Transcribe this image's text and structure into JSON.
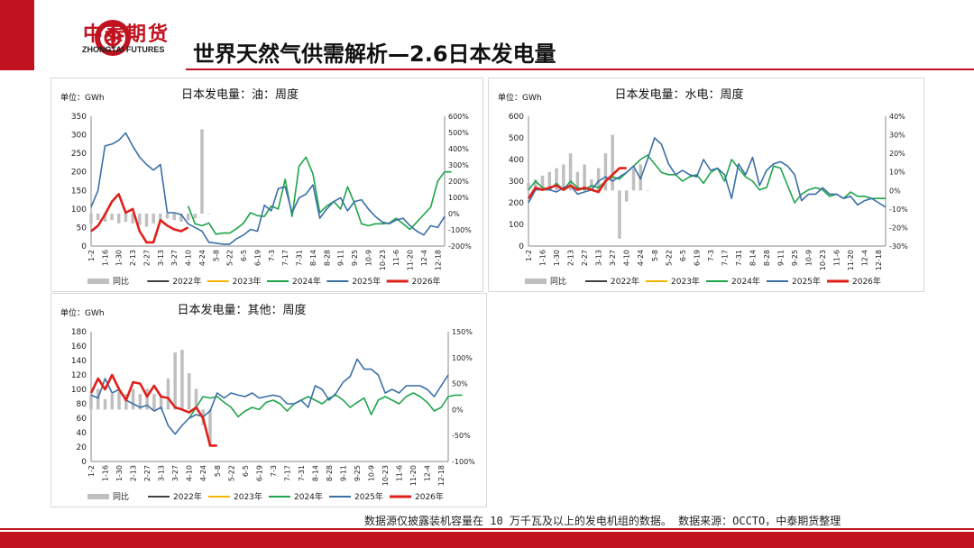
{
  "header": {
    "logo_name": "中泰期货",
    "logo_sub": "ZHONGTAI FUTURES",
    "title": "世界天然气供需解析—2.6日本发电量"
  },
  "footer": {
    "note": "数据源仅披露装机容量在 10 万千瓦及以上的发电机组的数据。   数据来源：OCCTO，中泰期货整理"
  },
  "colors": {
    "brand": "#c1121f",
    "yoy": "#bfbfbf",
    "s2022": "#404040",
    "s2023": "#f5b800",
    "s2024": "#1ea44a",
    "s2025": "#3a6fa8",
    "s2026": "#e0201b"
  },
  "chart_data": [
    {
      "id": "oil",
      "type": "line",
      "title": "日本发电量：油：周度",
      "unit_label": "单位：GWh",
      "x_tick_labels": [
        "1-2",
        "1-16",
        "1-30",
        "2-13",
        "2-27",
        "3-13",
        "3-27",
        "4-10",
        "4-24",
        "5-8",
        "5-22",
        "6-5",
        "6-19",
        "7-3",
        "7-17",
        "7-31",
        "8-14",
        "8-28",
        "9-11",
        "9-25",
        "10-9",
        "10-23",
        "11-6",
        "11-20",
        "12-4",
        "12-18"
      ],
      "weeks": 52,
      "ylim": [
        0,
        350
      ],
      "yticks": [
        0,
        50,
        100,
        150,
        200,
        250,
        300,
        350
      ],
      "y2lim": [
        -200,
        600
      ],
      "y2ticks": [
        "-200%",
        "-100%",
        "0%",
        "100%",
        "200%",
        "300%",
        "400%",
        "500%",
        "600%"
      ],
      "y2values": [
        -200,
        -100,
        0,
        100,
        200,
        300,
        400,
        500,
        600
      ],
      "legend": [
        "同比",
        "2022年",
        "2023年",
        "2024年",
        "2025年",
        "2026年"
      ],
      "series": [
        {
          "name": "2024年",
          "key": "s2024",
          "start": 14,
          "values": [
            108,
            60,
            55,
            62,
            32,
            35,
            35,
            47,
            62,
            90,
            82,
            80,
            108,
            100,
            180,
            80,
            215,
            240,
            195,
            90,
            108,
            120,
            100,
            160,
            115,
            60,
            55,
            60,
            60,
            62,
            75,
            60,
            45,
            65,
            85,
            105,
            175,
            200,
            200
          ]
        },
        {
          "name": "2025年",
          "key": "s2025",
          "start": 0,
          "values": [
            105,
            150,
            270,
            275,
            285,
            305,
            270,
            240,
            220,
            205,
            220,
            90,
            90,
            85,
            60,
            50,
            40,
            10,
            8,
            5,
            5,
            20,
            30,
            45,
            40,
            110,
            95,
            155,
            160,
            90,
            130,
            140,
            165,
            75,
            100,
            120,
            130,
            95,
            120,
            125,
            100,
            80,
            65,
            60,
            70,
            75,
            55,
            40,
            30,
            55,
            50,
            80
          ]
        },
        {
          "name": "2026年",
          "key": "s2026",
          "start": 0,
          "values": [
            40,
            55,
            85,
            120,
            140,
            90,
            100,
            40,
            10,
            10,
            70,
            55,
            45,
            40,
            50
          ]
        }
      ],
      "yoy": {
        "start": 0,
        "values": [
          -60,
          -40,
          -50,
          -40,
          -60,
          -50,
          -60,
          -70,
          -80,
          -60,
          -50,
          -30,
          -40,
          -50,
          -40,
          -30,
          520,
          0
        ]
      }
    },
    {
      "id": "hydro",
      "type": "line",
      "title": "日本发电量：水电：周度",
      "unit_label": "单位：GWh",
      "x_tick_labels": [
        "1-2",
        "1-16",
        "1-30",
        "2-13",
        "2-27",
        "3-13",
        "3-27",
        "4-10",
        "4-24",
        "5-8",
        "5-22",
        "6-5",
        "6-19",
        "7-3",
        "7-17",
        "7-31",
        "8-14",
        "8-28",
        "9-11",
        "9-25",
        "10-9",
        "10-23",
        "11-6",
        "11-20",
        "12-4",
        "12-18"
      ],
      "weeks": 52,
      "ylim": [
        0,
        600
      ],
      "yticks": [
        0,
        100,
        200,
        300,
        400,
        500,
        600
      ],
      "y2lim": [
        -30,
        40
      ],
      "y2ticks": [
        "-30%",
        "-20%",
        "-10%",
        "0%",
        "10%",
        "20%",
        "30%",
        "40%"
      ],
      "y2values": [
        -30,
        -20,
        -10,
        0,
        10,
        20,
        30,
        40
      ],
      "legend": [
        "同比",
        "2022年",
        "2023年",
        "2024年",
        "2025年",
        "2026年"
      ],
      "series": [
        {
          "name": "2024年",
          "key": "s2024",
          "start": 0,
          "values": [
            260,
            300,
            270,
            260,
            290,
            260,
            300,
            270,
            260,
            280,
            270,
            300,
            320,
            310,
            340,
            370,
            400,
            420,
            380,
            340,
            330,
            330,
            300,
            320,
            330,
            290,
            340,
            360,
            300,
            400,
            360,
            320,
            300,
            260,
            270,
            370,
            360,
            280,
            200,
            240,
            260,
            270,
            260,
            230,
            240,
            220,
            250,
            230,
            230,
            220,
            220,
            220
          ]
        },
        {
          "name": "2025年",
          "key": "s2025",
          "start": 0,
          "values": [
            200,
            260,
            260,
            260,
            250,
            270,
            280,
            240,
            250,
            260,
            300,
            320,
            300,
            320,
            340,
            370,
            310,
            400,
            500,
            470,
            380,
            330,
            350,
            330,
            320,
            400,
            350,
            360,
            330,
            220,
            380,
            330,
            410,
            280,
            350,
            380,
            390,
            370,
            330,
            210,
            240,
            240,
            270,
            240,
            240,
            220,
            230,
            190,
            210,
            220,
            200,
            180
          ]
        },
        {
          "name": "2026年",
          "key": "s2026",
          "start": 0,
          "values": [
            220,
            270,
            260,
            270,
            280,
            260,
            280,
            260,
            270,
            260,
            250,
            300,
            330,
            360,
            360
          ]
        }
      ],
      "yoy": {
        "start": 0,
        "values": [
          4,
          6,
          8,
          10,
          12,
          14,
          20,
          10,
          14,
          6,
          12,
          20,
          30,
          -26,
          -6,
          12,
          14,
          0
        ]
      }
    },
    {
      "id": "other",
      "type": "line",
      "title": "日本发电量：其他：周度",
      "unit_label": "单位：GWh",
      "x_tick_labels": [
        "1-2",
        "1-16",
        "1-30",
        "2-13",
        "2-27",
        "3-13",
        "3-27",
        "4-10",
        "4-24",
        "5-8",
        "5-22",
        "6-5",
        "6-19",
        "7-3",
        "7-17",
        "7-31",
        "8-14",
        "8-28",
        "9-11",
        "9-25",
        "10-9",
        "10-23",
        "11-6",
        "11-20",
        "12-4",
        "12-18"
      ],
      "weeks": 52,
      "ylim": [
        0,
        180
      ],
      "yticks": [
        0,
        20,
        40,
        60,
        80,
        100,
        120,
        140,
        160,
        180
      ],
      "y2lim": [
        -100,
        150
      ],
      "y2ticks": [
        "-100%",
        "-50%",
        "0%",
        "50%",
        "100%",
        "150%"
      ],
      "y2values": [
        -100,
        -50,
        0,
        50,
        100,
        150
      ],
      "legend": [
        "同比",
        "2022年",
        "2023年",
        "2024年",
        "2025年",
        "2026年"
      ],
      "series": [
        {
          "name": "2024年",
          "key": "s2024",
          "start": 14,
          "values": [
            60,
            75,
            90,
            88,
            90,
            82,
            75,
            62,
            70,
            75,
            72,
            82,
            85,
            80,
            70,
            80,
            85,
            90,
            85,
            80,
            88,
            92,
            85,
            75,
            82,
            88,
            65,
            85,
            90,
            85,
            80,
            90,
            95,
            90,
            82,
            70,
            75,
            90,
            92,
            92
          ]
        },
        {
          "name": "2025年",
          "key": "s2025",
          "start": 0,
          "values": [
            92,
            88,
            115,
            95,
            100,
            85,
            80,
            75,
            78,
            70,
            75,
            50,
            38,
            50,
            60,
            65,
            62,
            70,
            95,
            88,
            95,
            92,
            90,
            95,
            88,
            90,
            92,
            90,
            80,
            80,
            85,
            75,
            105,
            100,
            85,
            95,
            110,
            118,
            142,
            128,
            128,
            120,
            95,
            100,
            95,
            105,
            105,
            105,
            100,
            90,
            105,
            120
          ]
        },
        {
          "name": "2026年",
          "key": "s2026",
          "start": 0,
          "values": [
            95,
            115,
            100,
            120,
            100,
            85,
            110,
            108,
            90,
            105,
            90,
            88,
            75,
            72,
            68,
            75,
            60,
            22,
            22
          ]
        }
      ],
      "yoy": {
        "start": 0,
        "values": [
          30,
          40,
          20,
          30,
          35,
          30,
          40,
          30,
          40,
          30,
          25,
          60,
          110,
          115,
          70,
          40,
          -30,
          -70
        ]
      }
    }
  ]
}
